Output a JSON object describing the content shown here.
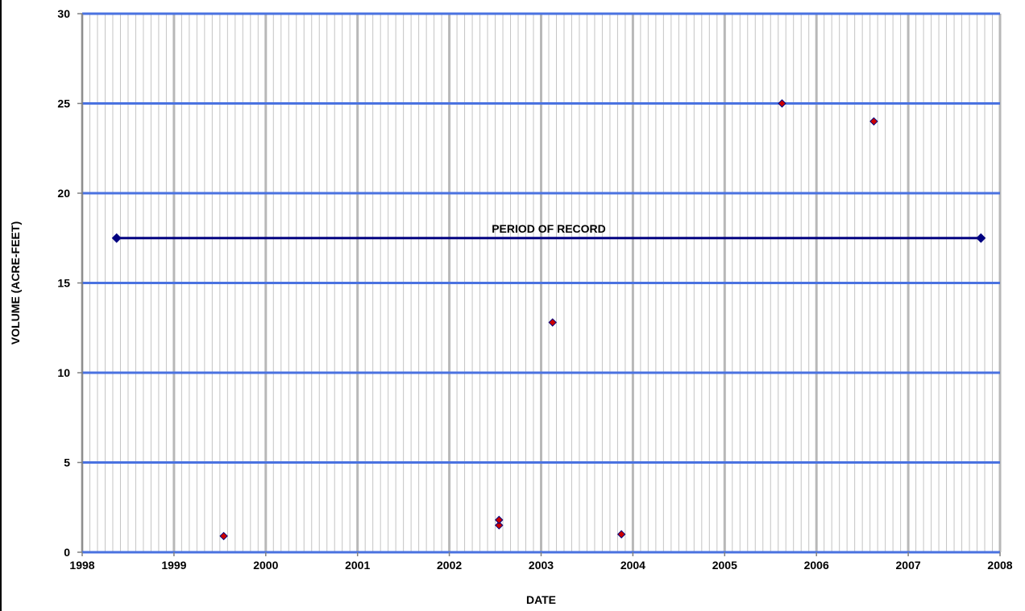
{
  "chart_data": {
    "type": "scatter",
    "title": "",
    "xlabel": "DATE",
    "ylabel": "VOLUME (ACRE-FEET)",
    "xlim": [
      1998,
      2008
    ],
    "ylim": [
      0,
      30
    ],
    "x_ticks": [
      "1998",
      "1999",
      "2000",
      "2001",
      "2002",
      "2003",
      "2004",
      "2005",
      "2006",
      "2007",
      "2008"
    ],
    "y_ticks": [
      "0",
      "5",
      "10",
      "15",
      "20",
      "25",
      "30"
    ],
    "x_minor_per_major": 12,
    "grid": true,
    "legend": "none",
    "series": [
      {
        "marker": "diamond",
        "color": "#cc0000",
        "points": [
          {
            "x": "1999-07",
            "y": 0.9
          },
          {
            "x": "2002-07",
            "y": 1.5
          },
          {
            "x": "2002-07",
            "y": 1.8
          },
          {
            "x": "2003-02",
            "y": 12.8
          },
          {
            "x": "2003-11",
            "y": 1.0
          },
          {
            "x": "2005-08",
            "y": 25
          },
          {
            "x": "2006-08",
            "y": 24
          }
        ]
      }
    ],
    "period_of_record": {
      "label": "PERIOD OF RECORD",
      "start": "1998-05",
      "end": "2007-10",
      "y": 17.5,
      "color": "#000080"
    }
  }
}
